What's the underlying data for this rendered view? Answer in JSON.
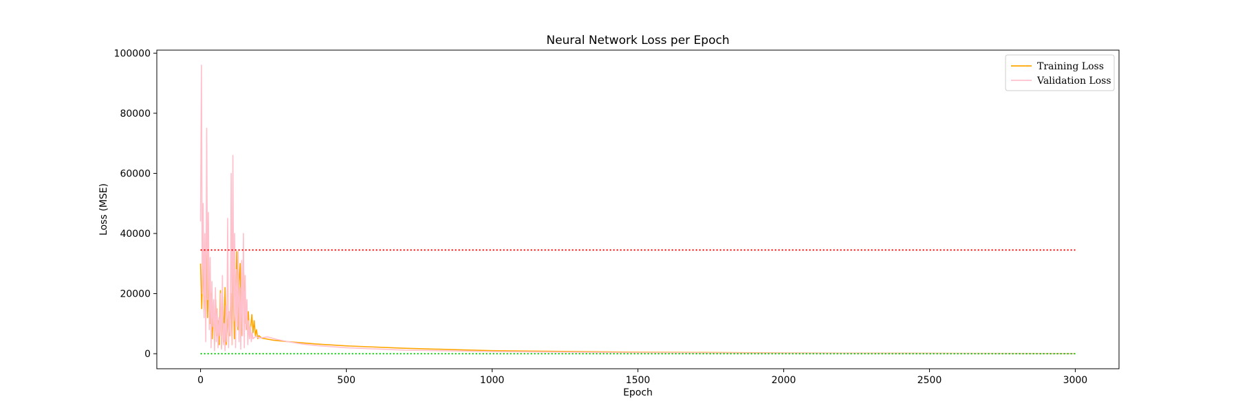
{
  "chart_data": {
    "type": "line",
    "title": "Neural Network Loss per Epoch",
    "xlabel": "Epoch",
    "ylabel": "Loss (MSE)",
    "xlim": [
      -150,
      3150
    ],
    "ylim": [
      -5000,
      101000
    ],
    "xticks": [
      0,
      500,
      1000,
      1500,
      2000,
      2500,
      3000
    ],
    "yticks": [
      0,
      20000,
      40000,
      60000,
      80000,
      100000
    ],
    "grid": false,
    "legend_position": "top-right",
    "series": [
      {
        "name": "Training Loss",
        "color": "#ffa500",
        "x": [
          0,
          4,
          8,
          12,
          16,
          20,
          24,
          28,
          32,
          36,
          40,
          44,
          48,
          52,
          56,
          60,
          64,
          68,
          72,
          76,
          80,
          84,
          88,
          92,
          96,
          100,
          104,
          108,
          112,
          116,
          120,
          124,
          128,
          132,
          136,
          140,
          144,
          148,
          152,
          156,
          160,
          164,
          168,
          172,
          176,
          180,
          184,
          188,
          192,
          196,
          200,
          210,
          220,
          250,
          300,
          400,
          500,
          700,
          1000,
          1500,
          2000,
          2500,
          3000
        ],
        "y": [
          30000,
          15000,
          32000,
          14000,
          25000,
          33000,
          12000,
          27000,
          10000,
          20000,
          5000,
          15000,
          3000,
          18000,
          6000,
          11000,
          3000,
          21000,
          2000,
          19000,
          4000,
          22000,
          3000,
          9000,
          14000,
          6000,
          20000,
          3000,
          30000,
          5000,
          14000,
          34000,
          8000,
          24000,
          30000,
          6000,
          17000,
          27000,
          10000,
          16000,
          8000,
          14000,
          6000,
          9000,
          13000,
          7000,
          11000,
          6000,
          8000,
          5000,
          6000,
          5200,
          5000,
          4500,
          4000,
          3200,
          2600,
          1800,
          1000,
          500,
          250,
          120,
          60
        ]
      },
      {
        "name": "Validation Loss",
        "color": "#ffc0cb",
        "x": [
          0,
          3,
          6,
          9,
          12,
          15,
          18,
          21,
          24,
          27,
          30,
          33,
          36,
          39,
          42,
          45,
          48,
          51,
          54,
          57,
          60,
          63,
          66,
          69,
          72,
          75,
          78,
          81,
          84,
          87,
          90,
          93,
          96,
          99,
          102,
          105,
          108,
          111,
          114,
          117,
          120,
          123,
          126,
          129,
          132,
          135,
          138,
          141,
          144,
          147,
          150,
          153,
          156,
          159,
          162,
          165,
          168,
          171,
          174,
          177,
          180,
          190,
          200,
          230,
          260,
          300,
          350,
          400,
          500,
          700,
          1000,
          1500,
          2000,
          2500,
          3000
        ],
        "y": [
          44000,
          96000,
          20000,
          50000,
          12000,
          40000,
          4000,
          75000,
          18000,
          47000,
          8000,
          32000,
          2000,
          24000,
          9000,
          18000,
          1000,
          22000,
          4000,
          15000,
          2000,
          12000,
          6000,
          20000,
          1500,
          26000,
          3000,
          10000,
          1000,
          16000,
          4000,
          45000,
          2000,
          14000,
          6000,
          60000,
          3000,
          66000,
          11000,
          40000,
          2000,
          28000,
          9000,
          34000,
          4000,
          22000,
          1500,
          31000,
          6000,
          40000,
          2000,
          26000,
          8000,
          18000,
          3000,
          11000,
          5000,
          9000,
          4000,
          7000,
          5000,
          5800,
          5200,
          5600,
          4800,
          4000,
          3200,
          2700,
          2000,
          1200,
          700,
          350,
          180,
          90,
          40
        ]
      },
      {
        "name": "",
        "color": "#ff0000",
        "style": "dotted",
        "x": [
          0,
          3000
        ],
        "y": [
          34500,
          34500
        ]
      },
      {
        "name": "",
        "color": "#00cc00",
        "style": "dotted",
        "x": [
          0,
          3000
        ],
        "y": [
          0,
          0
        ]
      }
    ]
  }
}
